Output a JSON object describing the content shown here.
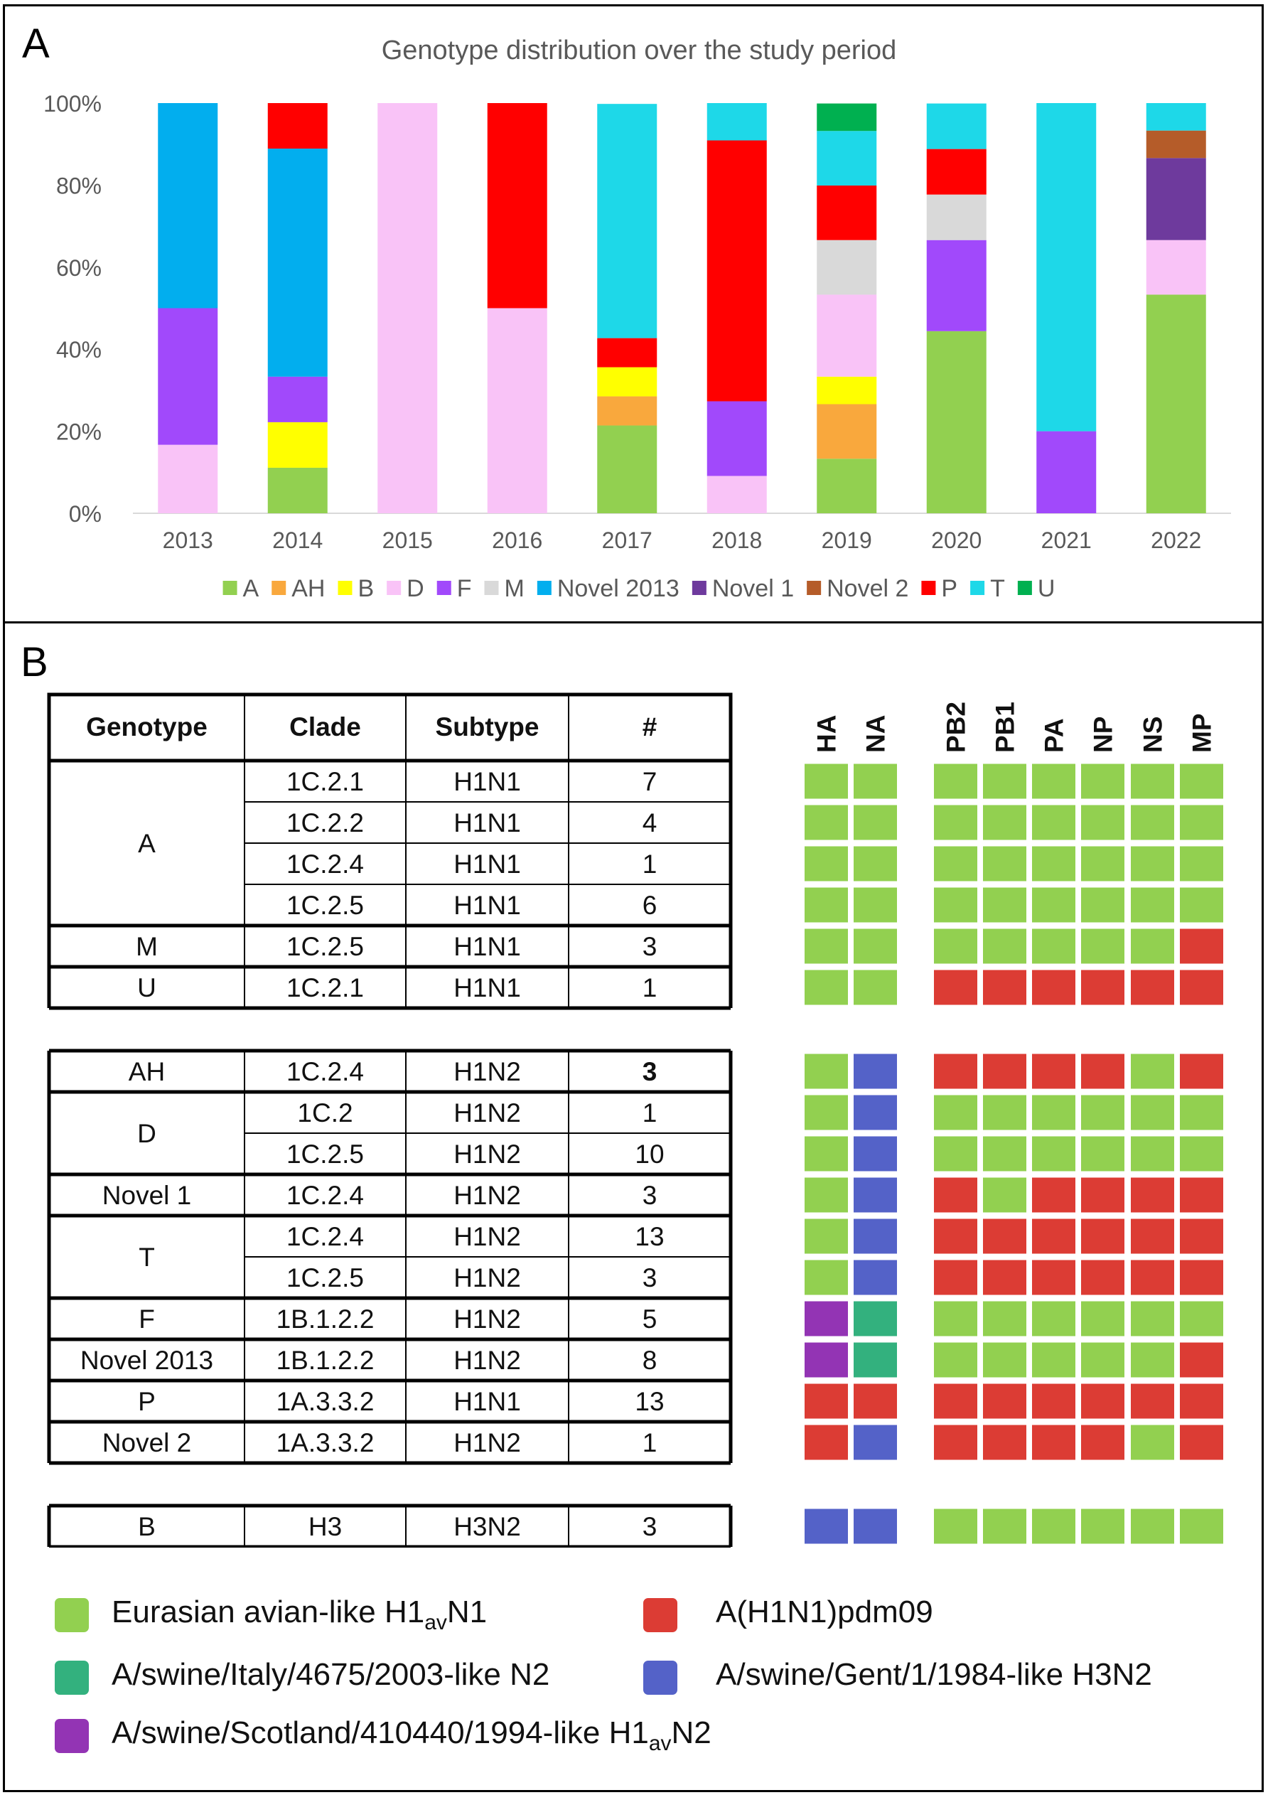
{
  "panel_a": {
    "letter": "A"
  },
  "panel_b": {
    "letter": "B"
  },
  "colors": {
    "A": "#92d050",
    "AH": "#f9a83d",
    "B": "#ffff00",
    "D": "#f9c3f7",
    "F": "#a149fb",
    "M": "#d9d9d9",
    "Novel 2013": "#02aeee",
    "Novel 1": "#6e3a9d",
    "Novel 2": "#b55c29",
    "P": "#ff0000",
    "T": "#1ed8e8",
    "U": "#00b050"
  },
  "chart_data": {
    "type": "bar",
    "stacked": true,
    "title": "Genotype distribution over the study period",
    "xlabel": "",
    "ylabel": "",
    "ylim": [
      0,
      100
    ],
    "yticks": [
      "0%",
      "20%",
      "40%",
      "60%",
      "80%",
      "100%"
    ],
    "grid": false,
    "legend_position": "bottom",
    "categories": [
      "2013",
      "2014",
      "2015",
      "2016",
      "2017",
      "2018",
      "2019",
      "2020",
      "2021",
      "2022"
    ],
    "series": [
      {
        "name": "A",
        "values": [
          0,
          11.1,
          0,
          0,
          21.4,
          0,
          13.3,
          44.4,
          0,
          53.3
        ]
      },
      {
        "name": "AH",
        "values": [
          0,
          0,
          0,
          0,
          7.1,
          0,
          13.3,
          0,
          0,
          0
        ]
      },
      {
        "name": "B",
        "values": [
          0,
          11.1,
          0,
          0,
          7.1,
          0,
          6.7,
          0,
          0,
          0
        ]
      },
      {
        "name": "D",
        "values": [
          16.7,
          0,
          100,
          50,
          0,
          9.1,
          20,
          0,
          0,
          13.3
        ]
      },
      {
        "name": "F",
        "values": [
          33.3,
          11.1,
          0,
          0,
          0,
          18.2,
          0,
          22.2,
          20,
          0
        ]
      },
      {
        "name": "M",
        "values": [
          0,
          0,
          0,
          0,
          0,
          0,
          13.3,
          11.1,
          0,
          0
        ]
      },
      {
        "name": "Novel 2013",
        "values": [
          50,
          55.6,
          0,
          0,
          0,
          0,
          0,
          0,
          0,
          0
        ]
      },
      {
        "name": "Novel 1",
        "values": [
          0,
          0,
          0,
          0,
          0,
          0,
          0,
          0,
          0,
          20
        ]
      },
      {
        "name": "Novel 2",
        "values": [
          0,
          0,
          0,
          0,
          0,
          0,
          0,
          0,
          0,
          6.7
        ]
      },
      {
        "name": "P",
        "values": [
          0,
          11.1,
          0,
          50,
          7.1,
          63.6,
          13.3,
          11.1,
          0,
          0
        ]
      },
      {
        "name": "T",
        "values": [
          0,
          0,
          0,
          0,
          57.1,
          9.1,
          13.3,
          11.1,
          80,
          6.7
        ]
      },
      {
        "name": "U",
        "values": [
          0,
          0,
          0,
          0,
          0,
          0,
          6.7,
          0,
          0,
          0
        ]
      }
    ]
  },
  "table": {
    "headers": [
      "Genotype",
      "Clade",
      "Subtype",
      "#"
    ],
    "gene_headers": [
      "HA",
      "NA",
      "PB2",
      "PB1",
      "PA",
      "NP",
      "NS",
      "MP"
    ],
    "groups": [
      {
        "label": "A",
        "rows": [
          {
            "clade": "1C.2.1",
            "subtype": "H1N1",
            "count": "7",
            "genes": [
              "g",
              "g",
              "g",
              "g",
              "g",
              "g",
              "g",
              "g"
            ]
          },
          {
            "clade": "1C.2.2",
            "subtype": "H1N1",
            "count": "4",
            "genes": [
              "g",
              "g",
              "g",
              "g",
              "g",
              "g",
              "g",
              "g"
            ]
          },
          {
            "clade": "1C.2.4",
            "subtype": "H1N1",
            "count": "1",
            "genes": [
              "g",
              "g",
              "g",
              "g",
              "g",
              "g",
              "g",
              "g"
            ]
          },
          {
            "clade": "1C.2.5",
            "subtype": "H1N1",
            "count": "6",
            "genes": [
              "g",
              "g",
              "g",
              "g",
              "g",
              "g",
              "g",
              "g"
            ]
          }
        ]
      },
      {
        "label": "M",
        "rows": [
          {
            "clade": "1C.2.5",
            "subtype": "H1N1",
            "count": "3",
            "genes": [
              "g",
              "g",
              "g",
              "g",
              "g",
              "g",
              "g",
              "r"
            ]
          }
        ]
      },
      {
        "label": "U",
        "rows": [
          {
            "clade": "1C.2.1",
            "subtype": "H1N1",
            "count": "1",
            "genes": [
              "g",
              "g",
              "r",
              "r",
              "r",
              "r",
              "r",
              "r"
            ]
          }
        ]
      },
      {
        "label": "AH",
        "rows": [
          {
            "clade": "1C.2.4",
            "subtype": "H1N2",
            "count": "3",
            "bold": true,
            "genes": [
              "g",
              "b",
              "r",
              "r",
              "r",
              "r",
              "g",
              "r"
            ]
          }
        ]
      },
      {
        "label": "D",
        "rows": [
          {
            "clade": "1C.2",
            "subtype": "H1N2",
            "count": "1",
            "genes": [
              "g",
              "b",
              "g",
              "g",
              "g",
              "g",
              "g",
              "g"
            ]
          },
          {
            "clade": "1C.2.5",
            "subtype": "H1N2",
            "count": "10",
            "genes": [
              "g",
              "b",
              "g",
              "g",
              "g",
              "g",
              "g",
              "g"
            ]
          }
        ]
      },
      {
        "label": "Novel 1",
        "rows": [
          {
            "clade": "1C.2.4",
            "subtype": "H1N2",
            "count": "3",
            "genes": [
              "g",
              "b",
              "r",
              "g",
              "r",
              "r",
              "r",
              "r"
            ]
          }
        ]
      },
      {
        "label": "T",
        "rows": [
          {
            "clade": "1C.2.4",
            "subtype": "H1N2",
            "count": "13",
            "genes": [
              "g",
              "b",
              "r",
              "r",
              "r",
              "r",
              "r",
              "r"
            ]
          },
          {
            "clade": "1C.2.5",
            "subtype": "H1N2",
            "count": "3",
            "genes": [
              "g",
              "b",
              "r",
              "r",
              "r",
              "r",
              "r",
              "r"
            ]
          }
        ]
      },
      {
        "label": "F",
        "rows": [
          {
            "clade": "1B.1.2.2",
            "subtype": "H1N2",
            "count": "5",
            "genes": [
              "p",
              "t",
              "g",
              "g",
              "g",
              "g",
              "g",
              "g"
            ]
          }
        ]
      },
      {
        "label": "Novel 2013",
        "rows": [
          {
            "clade": "1B.1.2.2",
            "subtype": "H1N2",
            "count": "8",
            "genes": [
              "p",
              "t",
              "g",
              "g",
              "g",
              "g",
              "g",
              "r"
            ]
          }
        ]
      },
      {
        "label": "P",
        "rows": [
          {
            "clade": "1A.3.3.2",
            "subtype": "H1N1",
            "count": "13",
            "genes": [
              "r",
              "r",
              "r",
              "r",
              "r",
              "r",
              "r",
              "r"
            ]
          }
        ]
      },
      {
        "label": "Novel 2",
        "rows": [
          {
            "clade": "1A.3.3.2",
            "subtype": "H1N2",
            "count": "1",
            "genes": [
              "r",
              "b",
              "r",
              "r",
              "r",
              "r",
              "g",
              "r"
            ]
          }
        ]
      },
      {
        "label": "B",
        "rows": [
          {
            "clade": "H3",
            "subtype": "H3N2",
            "count": "3",
            "genes": [
              "b",
              "b",
              "g",
              "g",
              "g",
              "g",
              "g",
              "g"
            ]
          }
        ]
      }
    ]
  },
  "lineage_colors": {
    "g": "#92d050",
    "r": "#dc3c34",
    "b": "#5462c8",
    "t": "#33b17e",
    "p": "#9334b4"
  },
  "lineage_legend": [
    {
      "key": "g",
      "pre": "Eurasian avian-like H1",
      "sub": "av",
      "post": "N1"
    },
    {
      "key": "r",
      "pre": "A(H1N1)pdm09",
      "sub": "",
      "post": ""
    },
    {
      "key": "t",
      "pre": "A/swine/Italy/4675/2003-like N2",
      "sub": "",
      "post": ""
    },
    {
      "key": "b",
      "pre": "A/swine/Gent/1/1984-like H3N2",
      "sub": "",
      "post": ""
    },
    {
      "key": "p",
      "pre": "A/swine/Scotland/410440/1994-like H1",
      "sub": "av",
      "post": "N2"
    }
  ]
}
